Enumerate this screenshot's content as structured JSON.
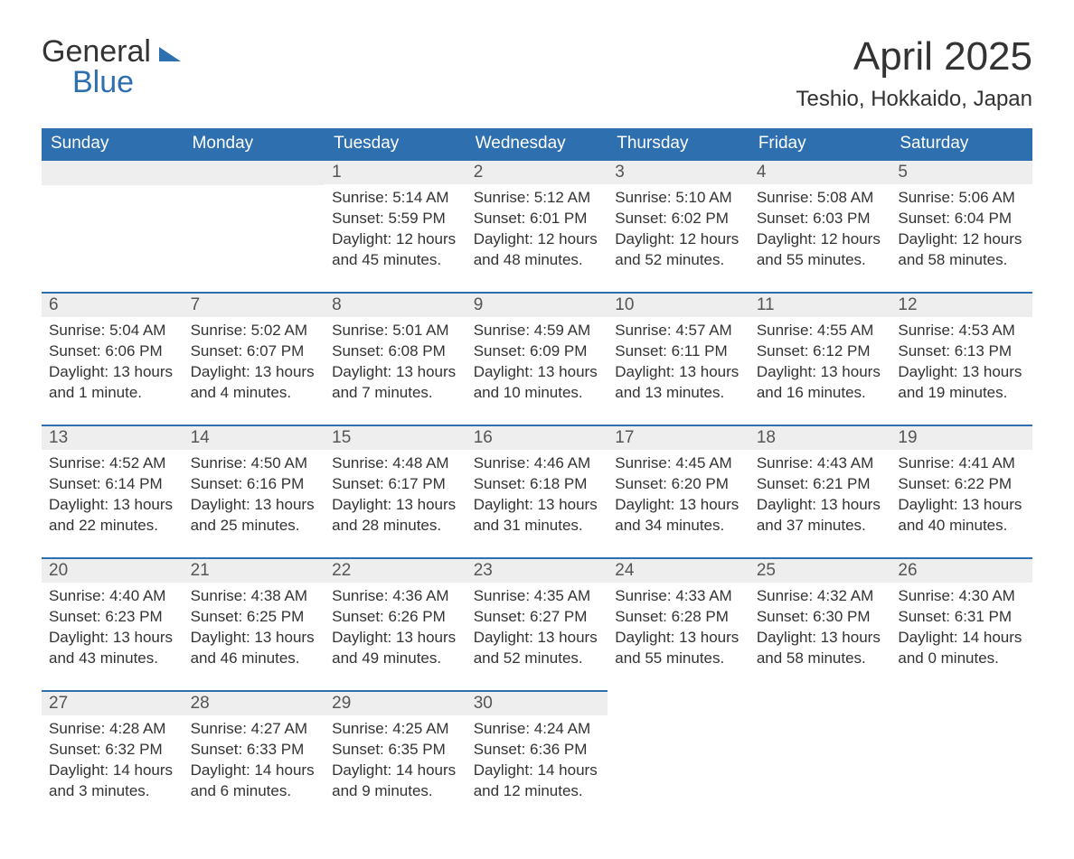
{
  "brand": {
    "line1": "General",
    "line2": "Blue"
  },
  "title": "April 2025",
  "location": "Teshio, Hokkaido, Japan",
  "colors": {
    "accent": "#2e6faf",
    "header_text": "#ffffff",
    "daynum_bg": "#eeeeee",
    "body_text": "#333333",
    "background": "#ffffff"
  },
  "weekdays": [
    "Sunday",
    "Monday",
    "Tuesday",
    "Wednesday",
    "Thursday",
    "Friday",
    "Saturday"
  ],
  "weeks": [
    [
      null,
      null,
      {
        "n": "1",
        "sr": "Sunrise: 5:14 AM",
        "ss": "Sunset: 5:59 PM",
        "dl": "Daylight: 12 hours and 45 minutes."
      },
      {
        "n": "2",
        "sr": "Sunrise: 5:12 AM",
        "ss": "Sunset: 6:01 PM",
        "dl": "Daylight: 12 hours and 48 minutes."
      },
      {
        "n": "3",
        "sr": "Sunrise: 5:10 AM",
        "ss": "Sunset: 6:02 PM",
        "dl": "Daylight: 12 hours and 52 minutes."
      },
      {
        "n": "4",
        "sr": "Sunrise: 5:08 AM",
        "ss": "Sunset: 6:03 PM",
        "dl": "Daylight: 12 hours and 55 minutes."
      },
      {
        "n": "5",
        "sr": "Sunrise: 5:06 AM",
        "ss": "Sunset: 6:04 PM",
        "dl": "Daylight: 12 hours and 58 minutes."
      }
    ],
    [
      {
        "n": "6",
        "sr": "Sunrise: 5:04 AM",
        "ss": "Sunset: 6:06 PM",
        "dl": "Daylight: 13 hours and 1 minute."
      },
      {
        "n": "7",
        "sr": "Sunrise: 5:02 AM",
        "ss": "Sunset: 6:07 PM",
        "dl": "Daylight: 13 hours and 4 minutes."
      },
      {
        "n": "8",
        "sr": "Sunrise: 5:01 AM",
        "ss": "Sunset: 6:08 PM",
        "dl": "Daylight: 13 hours and 7 minutes."
      },
      {
        "n": "9",
        "sr": "Sunrise: 4:59 AM",
        "ss": "Sunset: 6:09 PM",
        "dl": "Daylight: 13 hours and 10 minutes."
      },
      {
        "n": "10",
        "sr": "Sunrise: 4:57 AM",
        "ss": "Sunset: 6:11 PM",
        "dl": "Daylight: 13 hours and 13 minutes."
      },
      {
        "n": "11",
        "sr": "Sunrise: 4:55 AM",
        "ss": "Sunset: 6:12 PM",
        "dl": "Daylight: 13 hours and 16 minutes."
      },
      {
        "n": "12",
        "sr": "Sunrise: 4:53 AM",
        "ss": "Sunset: 6:13 PM",
        "dl": "Daylight: 13 hours and 19 minutes."
      }
    ],
    [
      {
        "n": "13",
        "sr": "Sunrise: 4:52 AM",
        "ss": "Sunset: 6:14 PM",
        "dl": "Daylight: 13 hours and 22 minutes."
      },
      {
        "n": "14",
        "sr": "Sunrise: 4:50 AM",
        "ss": "Sunset: 6:16 PM",
        "dl": "Daylight: 13 hours and 25 minutes."
      },
      {
        "n": "15",
        "sr": "Sunrise: 4:48 AM",
        "ss": "Sunset: 6:17 PM",
        "dl": "Daylight: 13 hours and 28 minutes."
      },
      {
        "n": "16",
        "sr": "Sunrise: 4:46 AM",
        "ss": "Sunset: 6:18 PM",
        "dl": "Daylight: 13 hours and 31 minutes."
      },
      {
        "n": "17",
        "sr": "Sunrise: 4:45 AM",
        "ss": "Sunset: 6:20 PM",
        "dl": "Daylight: 13 hours and 34 minutes."
      },
      {
        "n": "18",
        "sr": "Sunrise: 4:43 AM",
        "ss": "Sunset: 6:21 PM",
        "dl": "Daylight: 13 hours and 37 minutes."
      },
      {
        "n": "19",
        "sr": "Sunrise: 4:41 AM",
        "ss": "Sunset: 6:22 PM",
        "dl": "Daylight: 13 hours and 40 minutes."
      }
    ],
    [
      {
        "n": "20",
        "sr": "Sunrise: 4:40 AM",
        "ss": "Sunset: 6:23 PM",
        "dl": "Daylight: 13 hours and 43 minutes."
      },
      {
        "n": "21",
        "sr": "Sunrise: 4:38 AM",
        "ss": "Sunset: 6:25 PM",
        "dl": "Daylight: 13 hours and 46 minutes."
      },
      {
        "n": "22",
        "sr": "Sunrise: 4:36 AM",
        "ss": "Sunset: 6:26 PM",
        "dl": "Daylight: 13 hours and 49 minutes."
      },
      {
        "n": "23",
        "sr": "Sunrise: 4:35 AM",
        "ss": "Sunset: 6:27 PM",
        "dl": "Daylight: 13 hours and 52 minutes."
      },
      {
        "n": "24",
        "sr": "Sunrise: 4:33 AM",
        "ss": "Sunset: 6:28 PM",
        "dl": "Daylight: 13 hours and 55 minutes."
      },
      {
        "n": "25",
        "sr": "Sunrise: 4:32 AM",
        "ss": "Sunset: 6:30 PM",
        "dl": "Daylight: 13 hours and 58 minutes."
      },
      {
        "n": "26",
        "sr": "Sunrise: 4:30 AM",
        "ss": "Sunset: 6:31 PM",
        "dl": "Daylight: 14 hours and 0 minutes."
      }
    ],
    [
      {
        "n": "27",
        "sr": "Sunrise: 4:28 AM",
        "ss": "Sunset: 6:32 PM",
        "dl": "Daylight: 14 hours and 3 minutes."
      },
      {
        "n": "28",
        "sr": "Sunrise: 4:27 AM",
        "ss": "Sunset: 6:33 PM",
        "dl": "Daylight: 14 hours and 6 minutes."
      },
      {
        "n": "29",
        "sr": "Sunrise: 4:25 AM",
        "ss": "Sunset: 6:35 PM",
        "dl": "Daylight: 14 hours and 9 minutes."
      },
      {
        "n": "30",
        "sr": "Sunrise: 4:24 AM",
        "ss": "Sunset: 6:36 PM",
        "dl": "Daylight: 14 hours and 12 minutes."
      },
      null,
      null,
      null
    ]
  ]
}
